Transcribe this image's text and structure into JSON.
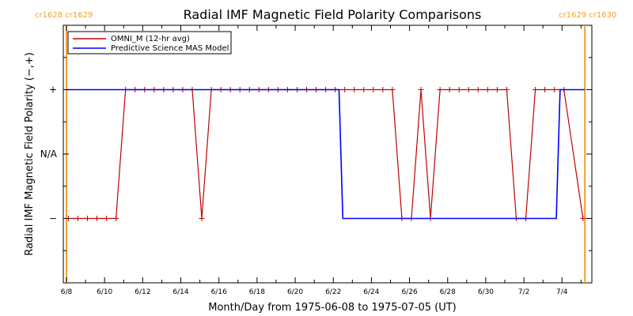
{
  "chart_data": {
    "type": "line",
    "title": "Radial IMF Magnetic Field Polarity Comparisons",
    "xlabel": "Month/Day from 1975-06-08 to 1975-07-05 (UT)",
    "ylabel": "Radial IMF Magnetic Field Polarity (−,+)",
    "x_tick_labels": [
      "6/8",
      "6/10",
      "6/12",
      "6/14",
      "6/16",
      "6/18",
      "6/20",
      "6/22",
      "6/24",
      "6/26",
      "6/28",
      "6/30",
      "7/2",
      "7/4"
    ],
    "y_tick_labels": [
      {
        "value": 1,
        "label": "+"
      },
      {
        "value": 0,
        "label": "N/A"
      },
      {
        "value": -1,
        "label": "−"
      }
    ],
    "ylim": [
      -2,
      2
    ],
    "xlim_days": [
      0,
      27.4
    ],
    "carrington_markers": [
      {
        "label": "cr1628 cr1629",
        "day": 0.0
      },
      {
        "label": "cr1629 cr1630",
        "day": 27.2
      }
    ],
    "legend": {
      "position": "top-left"
    },
    "series": [
      {
        "name": "OMNI_M (12-hr avg)",
        "color": "#c00000",
        "marker": "+",
        "points": [
          [
            0.1,
            -1
          ],
          [
            0.6,
            -1
          ],
          [
            1.1,
            -1
          ],
          [
            1.6,
            -1
          ],
          [
            2.1,
            -1
          ],
          [
            2.6,
            -1
          ],
          [
            3.1,
            1
          ],
          [
            3.6,
            1
          ],
          [
            4.1,
            1
          ],
          [
            4.6,
            1
          ],
          [
            5.1,
            1
          ],
          [
            5.6,
            1
          ],
          [
            6.1,
            1
          ],
          [
            6.6,
            1
          ],
          [
            7.1,
            -1
          ],
          [
            7.6,
            1
          ],
          [
            8.1,
            1
          ],
          [
            8.6,
            1
          ],
          [
            9.1,
            1
          ],
          [
            9.6,
            1
          ],
          [
            10.1,
            1
          ],
          [
            10.6,
            1
          ],
          [
            11.1,
            1
          ],
          [
            11.6,
            1
          ],
          [
            12.1,
            1
          ],
          [
            12.6,
            1
          ],
          [
            13.1,
            1
          ],
          [
            13.6,
            1
          ],
          [
            14.1,
            1
          ],
          [
            14.6,
            1
          ],
          [
            15.1,
            1
          ],
          [
            15.6,
            1
          ],
          [
            16.1,
            1
          ],
          [
            16.6,
            1
          ],
          [
            17.1,
            1
          ],
          [
            17.6,
            -1
          ],
          [
            18.1,
            -1
          ],
          [
            18.6,
            1
          ],
          [
            19.1,
            -1
          ],
          [
            19.6,
            1
          ],
          [
            20.1,
            1
          ],
          [
            20.6,
            1
          ],
          [
            21.1,
            1
          ],
          [
            21.6,
            1
          ],
          [
            22.1,
            1
          ],
          [
            22.6,
            1
          ],
          [
            23.1,
            1
          ],
          [
            23.6,
            -1
          ],
          [
            24.1,
            -1
          ],
          [
            24.6,
            1
          ],
          [
            25.1,
            1
          ],
          [
            25.6,
            1
          ],
          [
            26.1,
            1
          ],
          [
            27.1,
            -1
          ]
        ]
      },
      {
        "name": "Predictive Science MAS Model",
        "color": "#0000ff",
        "points": [
          [
            0,
            1
          ],
          [
            14.3,
            1
          ],
          [
            14.5,
            -1
          ],
          [
            25.7,
            -1
          ],
          [
            25.9,
            1
          ],
          [
            27.2,
            1
          ]
        ]
      }
    ]
  }
}
